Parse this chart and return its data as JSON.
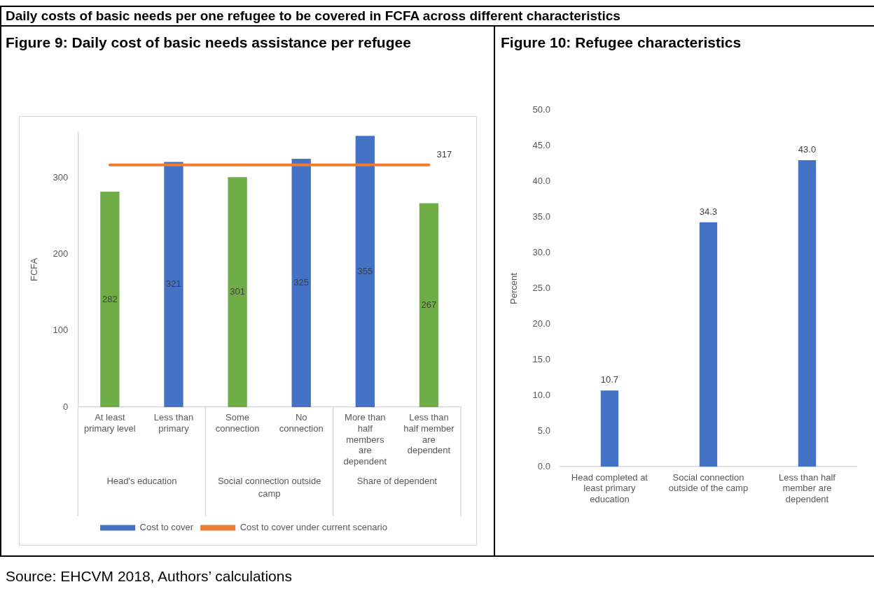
{
  "chart_data": [
    {
      "type": "bar",
      "title": "Figure 9: Daily cost of basic needs assistance per refugee",
      "ylabel": "FCFA",
      "categories": [
        "At least primary level",
        "Less than primary",
        "Some connection",
        "No connection",
        "More than half members are dependent",
        "Less than half member are dependent"
      ],
      "series": [
        {
          "name": "Cost to cover",
          "color": "#4472c4",
          "colors": [
            "#70ad47",
            "#4472c4",
            "#70ad47",
            "#4472c4",
            "#4472c4",
            "#70ad47"
          ],
          "values": [
            282,
            321,
            301,
            325,
            355,
            267
          ],
          "value_labels": [
            "282",
            "321",
            "301",
            "325",
            "355",
            "267"
          ]
        },
        {
          "name": "Cost to cover under current scenario",
          "type": "line",
          "color": "#ed7d31",
          "values": [
            317,
            317,
            317,
            317,
            317,
            317
          ],
          "value_labels": [
            null,
            null,
            null,
            null,
            null,
            "317"
          ]
        }
      ],
      "ylim": [
        0,
        360
      ],
      "yticks": [
        0,
        100,
        200,
        300
      ],
      "legend": "bottom",
      "annotations": [
        "Daily costs of basic needs per one refugee to be covered in FCFA across different characteristics",
        "Head's education",
        "Social connection outside camp",
        "Share of dependent",
        "Source: EHCVM 2018, Authors’ calculations"
      ]
    },
    {
      "type": "bar",
      "title": "Figure 10: Refugee characteristics",
      "ylabel": "Percent",
      "categories": [
        "Head completed at least primary education",
        "Social connection outside of the camp",
        "Less than half member are dependent"
      ],
      "values": [
        10.7,
        34.3,
        43.0
      ],
      "color": "#4472c4",
      "value_labels": [
        "10.7",
        "34.3",
        "43.0"
      ],
      "ylim": [
        0,
        50
      ],
      "yticks": [
        {
          "value": 0,
          "label": "0.0"
        },
        {
          "value": 5,
          "label": "5.0"
        },
        {
          "value": 10,
          "label": "10.0"
        },
        {
          "value": 15,
          "label": "15.0"
        },
        {
          "value": 20,
          "label": "20.0"
        },
        {
          "value": 25,
          "label": "25.0"
        },
        {
          "value": 30,
          "label": "30.0"
        },
        {
          "value": 35,
          "label": "35.0"
        },
        {
          "value": 40,
          "label": "40.0"
        },
        {
          "value": 45,
          "label": "45.0"
        },
        {
          "value": 50,
          "label": "50.0"
        }
      ]
    }
  ]
}
